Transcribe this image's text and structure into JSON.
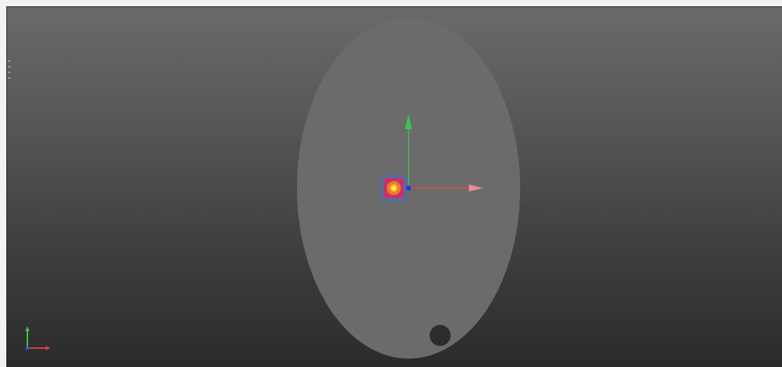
{
  "viewport": {
    "background_top": "#6a6a6a",
    "background_bottom": "#2b2b2b"
  },
  "scene": {
    "plane_color": "#6b6b6b",
    "hole_color": "#2c2c2c",
    "object_icon": "light-source-icon",
    "object_colors": {
      "outer": "#3a6cf0",
      "ring": "#c8306e",
      "core": "#ffd21e"
    }
  },
  "gizmo": {
    "x_axis_color": "#d84a4a",
    "y_axis_color": "#3fc24f",
    "center_color": "#1e3ae0"
  },
  "orientation_axes": {
    "x_color": "#e04040",
    "y_color": "#3cc84a",
    "z_color": "#3060e8"
  }
}
